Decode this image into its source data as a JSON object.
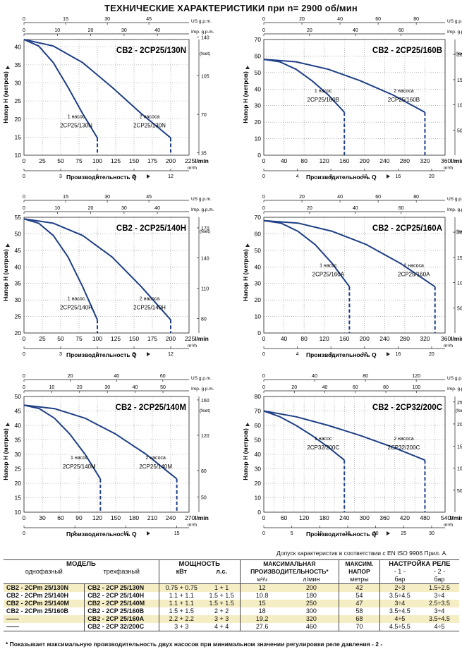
{
  "page_title": "ТЕХНИЧЕСКИЕ ХАРАКТЕРИСТИКИ при n= 2900 об/мин",
  "common": {
    "y_label": "Напор Н  (метров)",
    "x_label": "Производительность Q",
    "feet_label": "(feet)",
    "m3h_unit": "m³/h",
    "lmin_unit": "l/min",
    "usgpm_label": "US g.p.m.",
    "impgpm_label": "Imp. g.p.m.",
    "pump1_label": "1 насос",
    "pump2_label": "2 насоса"
  },
  "chart_data": [
    {
      "type": "line",
      "title": "CB2 - 2CP25/130N",
      "x_ticks": [
        "0",
        "25",
        "50",
        "75",
        "100",
        "125",
        "150",
        "175",
        "200",
        "225"
      ],
      "xlim": [
        0,
        225
      ],
      "y_ticks": [
        "10",
        "15",
        "20",
        "25",
        "30",
        "35",
        "40"
      ],
      "ylim": [
        10,
        42
      ],
      "feet_ticks": [
        {
          "label": "140",
          "v": 42.7
        },
        {
          "label": "105",
          "v": 32
        },
        {
          "label": "70",
          "v": 21.3
        },
        {
          "label": "35",
          "v": 10.7
        }
      ],
      "m3h_ticks": [
        {
          "label": "0",
          "v": 0
        },
        {
          "label": "3",
          "v": 50
        },
        {
          "label": "6",
          "v": 100
        },
        {
          "label": "9",
          "v": 150
        },
        {
          "label": "12",
          "v": 200
        }
      ],
      "us_ticks": [
        {
          "label": "0",
          "v": 0
        },
        {
          "label": "15",
          "v": 56.8
        },
        {
          "label": "30",
          "v": 113.6
        },
        {
          "label": "45",
          "v": 170.3
        }
      ],
      "imp_ticks": [
        {
          "label": "0",
          "v": 0
        },
        {
          "label": "10",
          "v": 45.5
        },
        {
          "label": "20",
          "v": 90.9
        },
        {
          "label": "30",
          "v": 136.4
        },
        {
          "label": "40",
          "v": 181.8
        }
      ],
      "series": [
        {
          "name": "2CP25/130N",
          "x": [
            0,
            20,
            40,
            60,
            80,
            100
          ],
          "y": [
            42,
            40.2,
            35.6,
            28.8,
            21.5,
            14.8
          ],
          "dash_to": [
            100,
            10
          ]
        },
        {
          "name": "2CP25/130N",
          "x": [
            0,
            40,
            80,
            120,
            160,
            200
          ],
          "y": [
            42,
            40.2,
            35.6,
            28.8,
            21.5,
            14.8
          ],
          "dash_to": [
            200,
            10
          ]
        }
      ]
    },
    {
      "type": "line",
      "title": "CB2 - 2CP25/160B",
      "x_ticks": [
        "0",
        "40",
        "80",
        "120",
        "160",
        "200",
        "240",
        "280",
        "320",
        "360"
      ],
      "xlim": [
        0,
        360
      ],
      "y_ticks": [
        "0",
        "10",
        "20",
        "30",
        "40",
        "50",
        "60",
        "70"
      ],
      "ylim": [
        0,
        70
      ],
      "feet_ticks": [
        {
          "label": "200",
          "v": 61
        },
        {
          "label": "150",
          "v": 45.7
        },
        {
          "label": "100",
          "v": 30.5
        },
        {
          "label": "50",
          "v": 15.2
        }
      ],
      "m3h_ticks": [
        {
          "label": "0",
          "v": 0
        },
        {
          "label": "4",
          "v": 66.7
        },
        {
          "label": "8",
          "v": 133.3
        },
        {
          "label": "12",
          "v": 200
        },
        {
          "label": "16",
          "v": 266.7
        },
        {
          "label": "20",
          "v": 333.3
        }
      ],
      "us_ticks": [
        {
          "label": "0",
          "v": 0
        },
        {
          "label": "20",
          "v": 75.7
        },
        {
          "label": "40",
          "v": 151.4
        },
        {
          "label": "60",
          "v": 227.1
        },
        {
          "label": "80",
          "v": 302.8
        }
      ],
      "imp_ticks": [
        {
          "label": "0",
          "v": 0
        },
        {
          "label": "20",
          "v": 90.9
        },
        {
          "label": "40",
          "v": 181.8
        },
        {
          "label": "60",
          "v": 272.7
        }
      ],
      "series": [
        {
          "name": "2CP25/160B",
          "x": [
            0,
            32,
            64,
            96,
            128,
            160
          ],
          "y": [
            58,
            56.5,
            52,
            45,
            36.5,
            26
          ],
          "dash_to": [
            160,
            0
          ]
        },
        {
          "name": "2CP25/160B",
          "x": [
            0,
            64,
            128,
            192,
            256,
            320
          ],
          "y": [
            58,
            56.5,
            52,
            45,
            36.5,
            26
          ],
          "dash_to": [
            320,
            0
          ]
        }
      ]
    },
    {
      "type": "line",
      "title": "CB2 - 2CP25/140H",
      "x_ticks": [
        "0",
        "25",
        "50",
        "75",
        "100",
        "125",
        "150",
        "175",
        "200",
        "225"
      ],
      "xlim": [
        0,
        225
      ],
      "y_ticks": [
        "20",
        "25",
        "30",
        "35",
        "40",
        "45",
        "50",
        "55"
      ],
      "ylim": [
        20,
        55
      ],
      "feet_ticks": [
        {
          "label": "170",
          "v": 51.8
        },
        {
          "label": "140",
          "v": 42.7
        },
        {
          "label": "110",
          "v": 33.5
        },
        {
          "label": "80",
          "v": 24.4
        }
      ],
      "m3h_ticks": [
        {
          "label": "0",
          "v": 0
        },
        {
          "label": "3",
          "v": 50
        },
        {
          "label": "6",
          "v": 100
        },
        {
          "label": "9",
          "v": 150
        },
        {
          "label": "12",
          "v": 200
        }
      ],
      "us_ticks": [
        {
          "label": "0",
          "v": 0
        },
        {
          "label": "15",
          "v": 56.8
        },
        {
          "label": "30",
          "v": 113.6
        },
        {
          "label": "45",
          "v": 170.3
        }
      ],
      "imp_ticks": [
        {
          "label": "0",
          "v": 0
        },
        {
          "label": "10",
          "v": 45.5
        },
        {
          "label": "20",
          "v": 90.9
        },
        {
          "label": "30",
          "v": 136.4
        },
        {
          "label": "40",
          "v": 181.8
        }
      ],
      "series": [
        {
          "name": "2CP25/140H",
          "x": [
            0,
            20,
            40,
            60,
            80,
            100
          ],
          "y": [
            54.5,
            53.2,
            49.5,
            43,
            34,
            24
          ],
          "dash_to": [
            100,
            20
          ]
        },
        {
          "name": "2CP25/140H",
          "x": [
            0,
            40,
            80,
            120,
            160,
            200
          ],
          "y": [
            54.5,
            53.2,
            49.5,
            43,
            34,
            24
          ],
          "dash_to": [
            200,
            20
          ]
        }
      ]
    },
    {
      "type": "line",
      "title": "CB2 - 2CP25/160A",
      "x_ticks": [
        "0",
        "40",
        "80",
        "120",
        "160",
        "200",
        "240",
        "280",
        "320",
        "360"
      ],
      "xlim": [
        0,
        360
      ],
      "y_ticks": [
        "0",
        "10",
        "20",
        "30",
        "40",
        "50",
        "60",
        "70"
      ],
      "ylim": [
        0,
        70
      ],
      "feet_ticks": [
        {
          "label": "200",
          "v": 61
        },
        {
          "label": "150",
          "v": 45.7
        },
        {
          "label": "100",
          "v": 30.5
        },
        {
          "label": "50",
          "v": 15.2
        }
      ],
      "m3h_ticks": [
        {
          "label": "0",
          "v": 0
        },
        {
          "label": "4",
          "v": 66.7
        },
        {
          "label": "8",
          "v": 133.3
        },
        {
          "label": "12",
          "v": 200
        },
        {
          "label": "16",
          "v": 266.7
        },
        {
          "label": "20",
          "v": 333.3
        }
      ],
      "us_ticks": [
        {
          "label": "0",
          "v": 0
        },
        {
          "label": "20",
          "v": 75.7
        },
        {
          "label": "40",
          "v": 151.4
        },
        {
          "label": "60",
          "v": 227.1
        },
        {
          "label": "80",
          "v": 302.8
        }
      ],
      "imp_ticks": [
        {
          "label": "0",
          "v": 0
        },
        {
          "label": "20",
          "v": 90.9
        },
        {
          "label": "40",
          "v": 181.8
        },
        {
          "label": "60",
          "v": 272.7
        }
      ],
      "series": [
        {
          "name": "2CP25/160A",
          "x": [
            0,
            34,
            68,
            102,
            136,
            170
          ],
          "y": [
            68,
            66.5,
            61.5,
            53.5,
            42,
            28
          ],
          "dash_to": [
            170,
            0
          ]
        },
        {
          "name": "2CP25/160A",
          "x": [
            0,
            68,
            136,
            204,
            272,
            340
          ],
          "y": [
            68,
            66.5,
            61.5,
            53.5,
            42,
            28
          ],
          "dash_to": [
            340,
            0
          ]
        }
      ]
    },
    {
      "type": "line",
      "title": "CB2 - 2CP25/140M",
      "x_ticks": [
        "0",
        "30",
        "60",
        "90",
        "120",
        "150",
        "180",
        "210",
        "240",
        "270"
      ],
      "xlim": [
        0,
        270
      ],
      "y_ticks": [
        "10",
        "15",
        "20",
        "25",
        "30",
        "35",
        "40",
        "45",
        "50"
      ],
      "ylim": [
        10,
        50
      ],
      "feet_ticks": [
        {
          "label": "160",
          "v": 48.8
        },
        {
          "label": "120",
          "v": 36.6
        },
        {
          "label": "80",
          "v": 24.4
        },
        {
          "label": "50",
          "v": 15.2
        }
      ],
      "m3h_ticks": [
        {
          "label": "0",
          "v": 0
        },
        {
          "label": "5",
          "v": 83.3
        },
        {
          "label": "10",
          "v": 166.7
        },
        {
          "label": "15",
          "v": 250
        }
      ],
      "us_ticks": [
        {
          "label": "0",
          "v": 0
        },
        {
          "label": "20",
          "v": 75.7
        },
        {
          "label": "40",
          "v": 151.4
        },
        {
          "label": "60",
          "v": 227.1
        }
      ],
      "imp_ticks": [
        {
          "label": "0",
          "v": 0
        },
        {
          "label": "10",
          "v": 45.5
        },
        {
          "label": "20",
          "v": 90.9
        },
        {
          "label": "30",
          "v": 136.4
        },
        {
          "label": "40",
          "v": 181.8
        },
        {
          "label": "50",
          "v": 227.3
        }
      ],
      "series": [
        {
          "name": "2CP25/140M",
          "x": [
            0,
            25,
            50,
            75,
            100,
            125
          ],
          "y": [
            47,
            45.8,
            42.5,
            37,
            30,
            21.5
          ],
          "dash_to": [
            125,
            10
          ]
        },
        {
          "name": "2CP25/140M",
          "x": [
            0,
            50,
            100,
            150,
            200,
            250
          ],
          "y": [
            47,
            45.8,
            42.5,
            37,
            30,
            21.5
          ],
          "dash_to": [
            250,
            10
          ]
        }
      ]
    },
    {
      "type": "line",
      "title": "CB2 - 2CP32/200C",
      "x_ticks": [
        "0",
        "30",
        "60",
        "90",
        "120",
        "150",
        "180",
        "210",
        "240",
        "270",
        "300",
        "330",
        "360",
        "390",
        "420",
        "450",
        "480",
        "510",
        "540"
      ],
      "x_tick_labels_shown": [
        "0",
        "60",
        "120",
        "180",
        "240",
        "300",
        "360",
        "420",
        "480",
        "540"
      ],
      "xlim": [
        0,
        540
      ],
      "y_ticks": [
        "0",
        "10",
        "20",
        "30",
        "40",
        "50",
        "60",
        "70",
        "80"
      ],
      "ylim": [
        0,
        80
      ],
      "feet_ticks": [
        {
          "label": "250",
          "v": 76.2
        },
        {
          "label": "200",
          "v": 61
        },
        {
          "label": "150",
          "v": 45.7
        },
        {
          "label": "100",
          "v": 30.5
        },
        {
          "label": "50",
          "v": 15.2
        }
      ],
      "m3h_ticks": [
        {
          "label": "0",
          "v": 0
        },
        {
          "label": "5",
          "v": 83.3
        },
        {
          "label": "10",
          "v": 166.7
        },
        {
          "label": "15",
          "v": 250
        },
        {
          "label": "20",
          "v": 333.3
        },
        {
          "label": "25",
          "v": 416.7
        },
        {
          "label": "30",
          "v": 500
        }
      ],
      "us_ticks": [
        {
          "label": "0",
          "v": 0
        },
        {
          "label": "40",
          "v": 151.4
        },
        {
          "label": "80",
          "v": 302.8
        },
        {
          "label": "120",
          "v": 454.2
        }
      ],
      "imp_ticks": [
        {
          "label": "0",
          "v": 0
        },
        {
          "label": "20",
          "v": 90.9
        },
        {
          "label": "40",
          "v": 181.8
        },
        {
          "label": "60",
          "v": 272.7
        },
        {
          "label": "80",
          "v": 363.6
        },
        {
          "label": "100",
          "v": 454.5
        }
      ],
      "series": [
        {
          "name": "2CP32/200C",
          "x": [
            0,
            48,
            96,
            144,
            192,
            240
          ],
          "y": [
            70,
            66,
            60,
            53,
            45,
            36
          ],
          "dash_to": [
            240,
            0
          ]
        },
        {
          "name": "2CP32/200C",
          "x": [
            0,
            96,
            192,
            288,
            384,
            480
          ],
          "y": [
            70,
            66,
            60,
            53,
            45,
            36
          ],
          "dash_to": [
            480,
            0
          ]
        }
      ]
    }
  ],
  "tolerance_note": "Допуск характеристик в соответствии с EN ISO 9906 Прил.  A.",
  "table": {
    "model_header": "МОДЕЛЬ",
    "single_phase": "однофазный",
    "three_phase": "трехфазный",
    "power_header": "МОЩНОСТЬ",
    "kw": "кВт",
    "hp": "л.с.",
    "maxflow_header_1": "МАКСИМАЛЬНАЯ",
    "maxflow_header_2": "ПРОИЗВОДИТЕЛЬНОСТЬ*",
    "m3h": "м³/ч",
    "lmin": "л/мин",
    "maxhead_header_1": "МАКСИМ.",
    "maxhead_header_2": "НАПОР",
    "metres": "метры",
    "relay_header": "НАСТРОЙКА РЕЛЕ",
    "relay_1": "- 1 -",
    "relay_2": "- 2 -",
    "bar": "бар",
    "rows": [
      {
        "single": "CB2 - 2CPm 25/130N",
        "three": "CB2 - 2CP 25/130N",
        "kw": "0.75 + 0.75",
        "hp": "1 + 1",
        "m3h": "12",
        "lmin": "200",
        "head": "42",
        "r1": "2÷3",
        "r2": "1.5÷2.5"
      },
      {
        "single": "CB2 - 2CPm 25/140H",
        "three": "CB2 - 2CP 25/140H",
        "kw": "1.1 + 1.1",
        "hp": "1.5 + 1.5",
        "m3h": "10.8",
        "lmin": "180",
        "head": "54",
        "r1": "3.5÷4.5",
        "r2": "3÷4"
      },
      {
        "single": "CB2 - 2CPm 25/140M",
        "three": "CB2 - 2CP 25/140M",
        "kw": "1.1 + 1.1",
        "hp": "1.5 + 1.5",
        "m3h": "15",
        "lmin": "250",
        "head": "47",
        "r1": "3÷4",
        "r2": "2.5÷3.5"
      },
      {
        "single": "CB2 - 2CPm 25/160B",
        "three": "CB2 - 2CP 25/160B",
        "kw": "1.5 + 1.5",
        "hp": "2 + 2",
        "m3h": "18",
        "lmin": "300",
        "head": "58",
        "r1": "3.5÷4.5",
        "r2": "3÷4"
      },
      {
        "single": "——",
        "three": "CB2 - 2CP 25/160A",
        "kw": "2.2 + 2.2",
        "hp": "3 + 3",
        "m3h": "19.2",
        "lmin": "320",
        "head": "68",
        "r1": "4÷5",
        "r2": "3.5÷4.5"
      },
      {
        "single": "——",
        "three": "CB2 - 2CP 32/200C",
        "kw": "3 + 3",
        "hp": "4 + 4",
        "m3h": "27.6",
        "lmin": "460",
        "head": "70",
        "r1": "4.5÷5.5",
        "r2": "4÷5"
      }
    ]
  },
  "footnote": "* Показывает максимальную производительность двух насосов при минимальном значении регулировки реле давления - 2 -"
}
